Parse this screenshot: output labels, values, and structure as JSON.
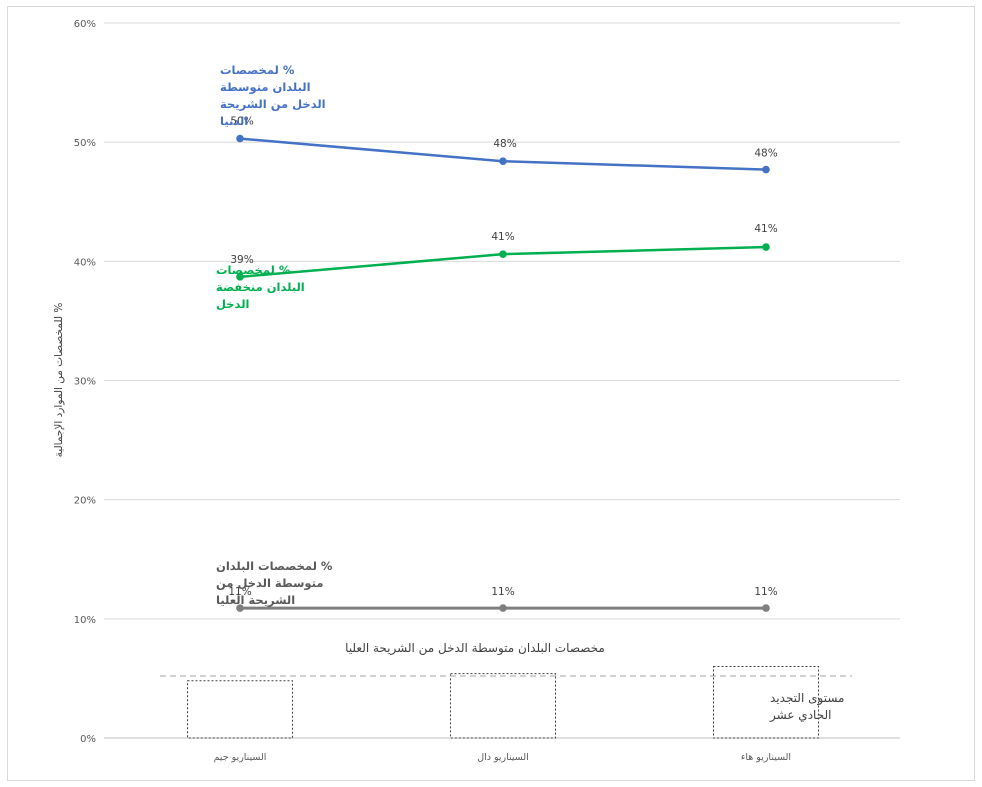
{
  "chart_data": {
    "type": "line",
    "ylabel": "% للمخصصات من الموارد الإجمالية",
    "ylim": [
      0,
      60
    ],
    "yticks": [
      "0%",
      "10%",
      "20%",
      "30%",
      "40%",
      "50%",
      "60%"
    ],
    "grid": true,
    "categories": [
      "السيناريو جيم",
      "السيناريو دال",
      "السيناريو هاء"
    ],
    "series": [
      {
        "name": "% لمخصصات البلدان متوسطة الدخل من الشريحة الدنيا",
        "name_lines": [
          "% لمخصصات",
          "البلدان متوسطة",
          "الدخل من الشريحة",
          "الدنيا"
        ],
        "values": [
          50.3,
          48.4,
          47.7
        ],
        "labels": [
          "50%",
          "48%",
          "48%"
        ],
        "color": "#4472C4"
      },
      {
        "name": "% لمخصصات البلدان منخفضة الدخل",
        "name_lines": [
          "% لمخصصات",
          "البلدان منخفضة",
          "الدخل"
        ],
        "values": [
          38.7,
          40.6,
          41.2
        ],
        "labels": [
          "39%",
          "41%",
          "41%"
        ],
        "color": "#00B050"
      },
      {
        "name": "% لمخصصات البلدان متوسطة الدخل من الشريحة العليا",
        "name_lines": [
          "% لمخصصات البلدان",
          "متوسطة الدخل من",
          "الشريحة العليا"
        ],
        "values": [
          10.9,
          10.9,
          10.9
        ],
        "labels": [
          "11%",
          "11%",
          "11%"
        ],
        "color": "#7F7F7F"
      }
    ],
    "section_label": "مخصصات البلدان متوسطة الدخل من الشريحة العليا",
    "bars": [
      4.8,
      5.4,
      6.0
    ],
    "reference_line": 5.2,
    "reference_note_lines": [
      "مستوى التجديد",
      "الحادي عشر"
    ]
  }
}
